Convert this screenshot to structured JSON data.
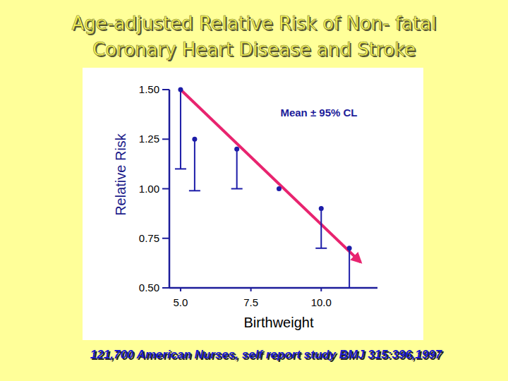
{
  "chart_data": {
    "type": "scatter",
    "title": [
      "Age-adjusted Relative Risk of Non- fatal",
      "Coronary Heart Disease and Stroke"
    ],
    "y_label": "Relative Risk",
    "x_label": "Birthweight",
    "annotation": "Mean ± 95% CL",
    "footnote": "121,700 American Nurses, self report study  BMJ 315:396,1997",
    "xlim": [
      4.6,
      12.0
    ],
    "xticks": [
      {
        "value": 5.0,
        "label": "5.0"
      },
      {
        "value": 7.5,
        "label": "7.5"
      },
      {
        "value": 10.0,
        "label": "10.0"
      }
    ],
    "ylim": [
      0.5,
      1.5
    ],
    "yticks": [
      {
        "value": 0.5,
        "label": "0.50"
      },
      {
        "value": 0.75,
        "label": "0.75"
      },
      {
        "value": 1.0,
        "label": "1.00"
      },
      {
        "value": 1.25,
        "label": "1.25"
      },
      {
        "value": 1.5,
        "label": "1.50"
      }
    ],
    "grid": false,
    "series": [
      {
        "type": "scatter",
        "marker": "circle",
        "color": "#1c1ca8",
        "x": [
          5.0,
          5.5,
          7.0,
          8.5,
          10.0,
          11.0
        ],
        "values": [
          1.5,
          1.25,
          1.2,
          1.0,
          0.9,
          0.7
        ],
        "lower": [
          1.1,
          0.99,
          1.0,
          null,
          0.7,
          0.5
        ]
      },
      {
        "type": "line",
        "line_style": "arrow",
        "color": "#e8246f",
        "x": [
          5.0,
          11.4
        ],
        "values": [
          1.5,
          0.63
        ]
      }
    ]
  }
}
